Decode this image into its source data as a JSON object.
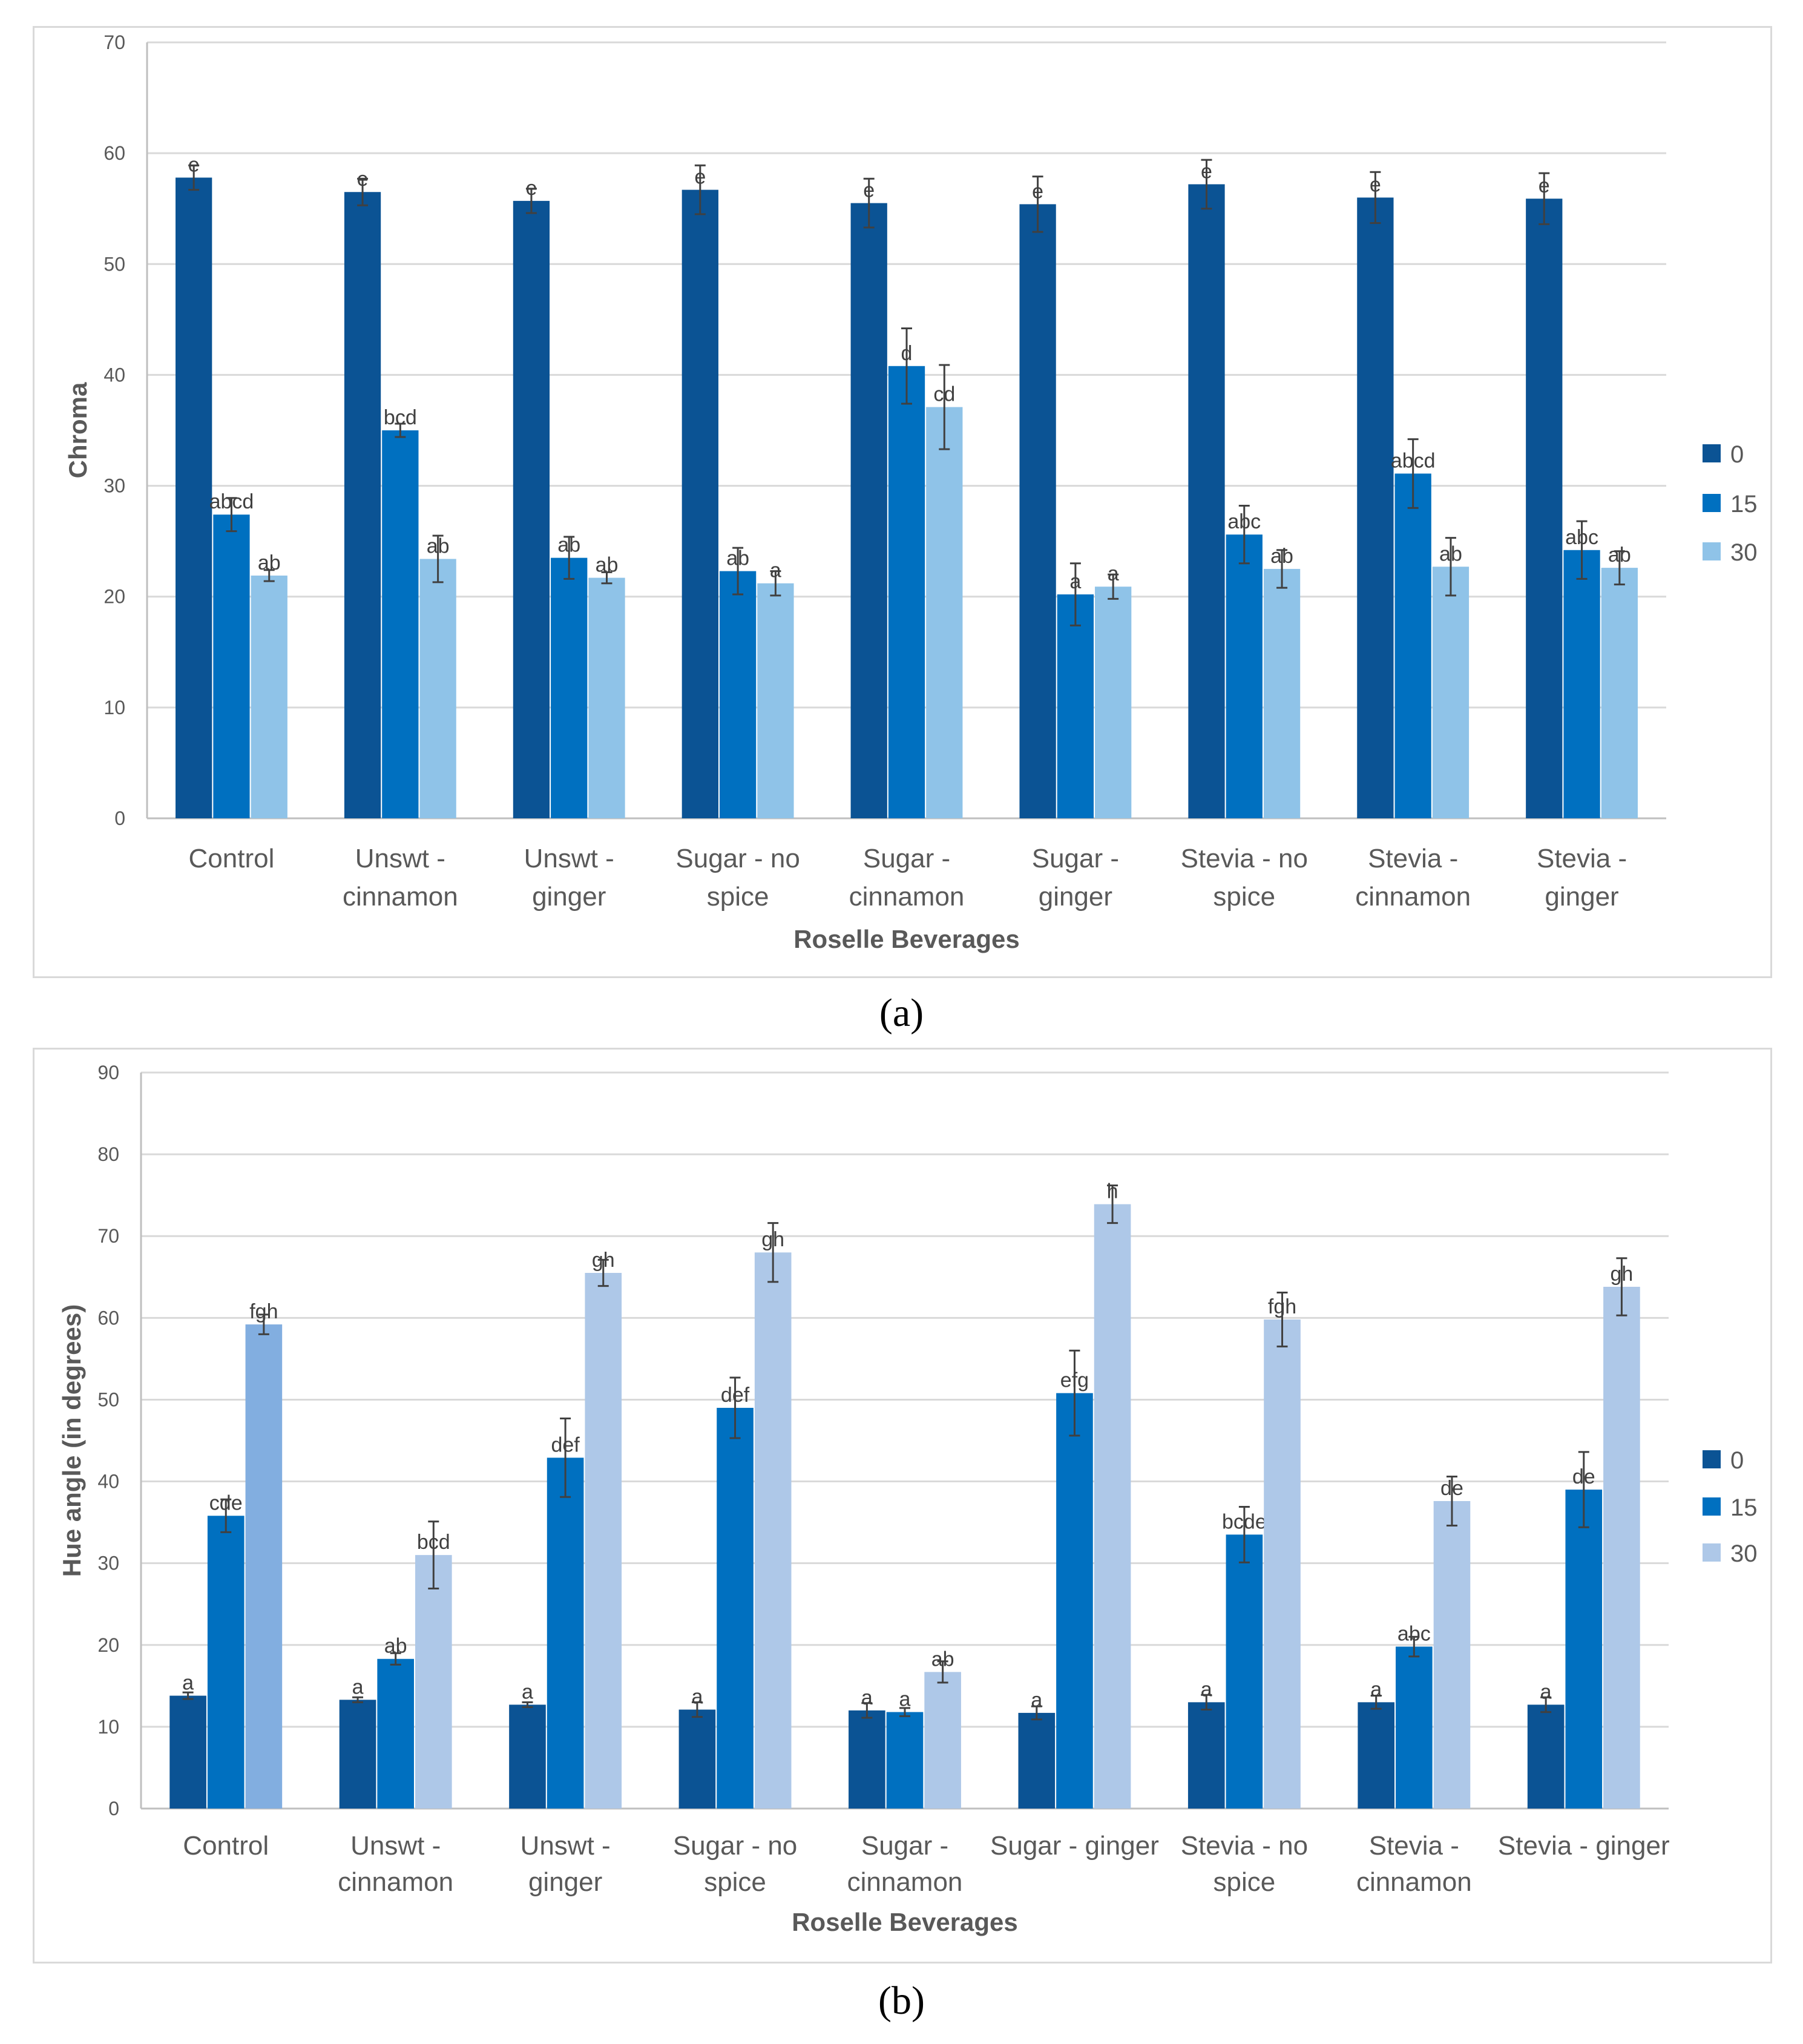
{
  "chart_data": [
    {
      "type": "bar",
      "panel_label": "a",
      "caption": "(a)",
      "title": "",
      "xlabel": "Roselle Beverages",
      "ylabel": "Chroma",
      "ylim": [
        0,
        70
      ],
      "yticks": [
        0,
        10,
        20,
        30,
        40,
        50,
        60,
        70
      ],
      "grid": true,
      "legend_position": "right",
      "categories": [
        [
          "Control"
        ],
        [
          "Unswt -",
          "cinnamon"
        ],
        [
          "Unswt -",
          "ginger"
        ],
        [
          "Sugar - no",
          "spice"
        ],
        [
          "Sugar -",
          "cinnamon"
        ],
        [
          "Sugar -",
          "ginger"
        ],
        [
          "Stevia - no",
          "spice"
        ],
        [
          "Stevia -",
          "cinnamon"
        ],
        [
          "Stevia -",
          "ginger"
        ]
      ],
      "series": [
        {
          "name": "0",
          "color": "#0b5394",
          "values": [
            57.8,
            56.5,
            55.7,
            56.7,
            55.5,
            55.4,
            57.2,
            56.0,
            55.9
          ],
          "errors": [
            1.1,
            1.2,
            1.1,
            2.2,
            2.2,
            2.5,
            2.2,
            2.3,
            2.3
          ],
          "labels": [
            "e",
            "e",
            "e",
            "e",
            "e",
            "e",
            "e",
            "e",
            "e"
          ]
        },
        {
          "name": "15",
          "color": "#0070c0",
          "values": [
            27.4,
            35.0,
            23.5,
            22.3,
            40.8,
            20.2,
            25.6,
            31.1,
            24.2
          ],
          "errors": [
            1.5,
            0.6,
            1.9,
            2.1,
            3.4,
            2.8,
            2.6,
            3.1,
            2.6
          ],
          "labels": [
            "abcd",
            "bcd",
            "ab",
            "ab",
            "d",
            "a",
            "abc",
            "abcd",
            "abc"
          ]
        },
        {
          "name": "30",
          "color": "#8fc3e8",
          "values": [
            21.9,
            23.4,
            21.7,
            21.2,
            37.1,
            20.9,
            22.5,
            22.7,
            22.6
          ],
          "errors": [
            0.5,
            2.1,
            0.5,
            1.1,
            3.8,
            1.1,
            1.7,
            2.6,
            1.5
          ],
          "labels": [
            "ab",
            "ab",
            "ab",
            "a",
            "cd",
            "a",
            "ab",
            "ab",
            "ab"
          ]
        }
      ]
    },
    {
      "type": "bar",
      "panel_label": "b",
      "caption": "(b)",
      "title": "",
      "xlabel": "Roselle Beverages",
      "ylabel": "Hue angle (in degrees)",
      "ylim": [
        0,
        90
      ],
      "yticks": [
        0,
        10,
        20,
        30,
        40,
        50,
        60,
        70,
        80,
        90
      ],
      "grid": true,
      "legend_position": "right",
      "categories": [
        [
          "Control"
        ],
        [
          "Unswt -",
          "cinnamon"
        ],
        [
          "Unswt -",
          "ginger"
        ],
        [
          "Sugar - no",
          "spice"
        ],
        [
          "Sugar -",
          "cinnamon"
        ],
        [
          "Sugar - ginger"
        ],
        [
          "Stevia - no",
          "spice"
        ],
        [
          "Stevia -",
          "cinnamon"
        ],
        [
          "Stevia - ginger"
        ]
      ],
      "series": [
        {
          "name": "0",
          "color": "#0b5394",
          "values": [
            13.8,
            13.3,
            12.7,
            12.1,
            12.0,
            11.7,
            13.0,
            13.0,
            12.7
          ],
          "errors": [
            0.4,
            0.3,
            0.3,
            0.9,
            0.9,
            0.8,
            0.9,
            0.8,
            0.9
          ],
          "labels": [
            "a",
            "a",
            "a",
            "a",
            "a",
            "a",
            "a",
            "a",
            "a"
          ]
        },
        {
          "name": "15",
          "color": "#0070c0",
          "values": [
            35.8,
            18.3,
            42.9,
            49.0,
            11.8,
            50.8,
            33.5,
            19.8,
            39.0
          ],
          "errors": [
            2.0,
            0.7,
            4.8,
            3.7,
            0.5,
            5.2,
            3.4,
            1.2,
            4.6
          ],
          "labels": [
            "cde",
            "ab",
            "def",
            "def",
            "a",
            "efg",
            "bcde",
            "abc",
            "de"
          ]
        },
        {
          "name": "30",
          "color": "#aec8e8",
          "values": [
            59.2,
            31.0,
            65.5,
            68.0,
            16.7,
            73.9,
            59.8,
            37.6,
            63.8
          ],
          "errors": [
            1.2,
            4.1,
            1.6,
            3.6,
            1.3,
            2.3,
            3.3,
            3.0,
            3.5
          ],
          "labels": [
            "fgh",
            "bcd",
            "gh",
            "gh",
            "ab",
            "h",
            "fgh",
            "de",
            "gh"
          ],
          "point_colors": [
            "#82aee0",
            null,
            null,
            null,
            null,
            null,
            null,
            null,
            null
          ]
        }
      ]
    }
  ]
}
